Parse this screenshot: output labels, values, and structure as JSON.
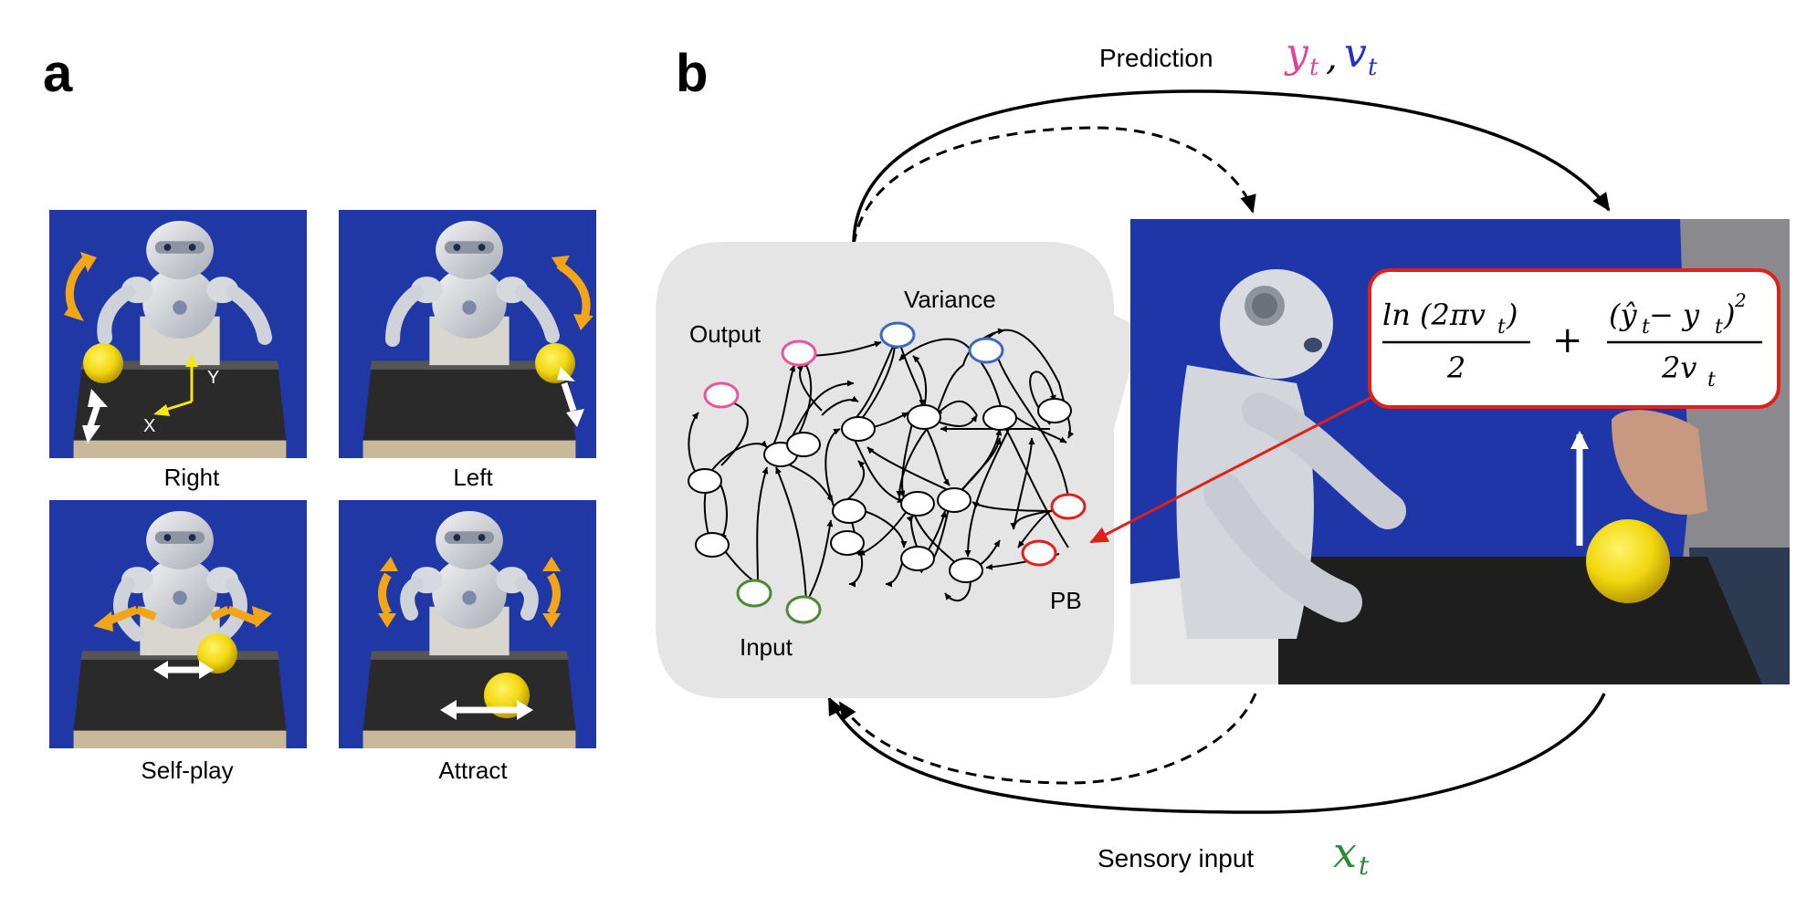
{
  "panels": {
    "a": {
      "letter": "a",
      "photos": [
        {
          "caption": "Right",
          "axis_x": "X",
          "axis_y": "Y"
        },
        {
          "caption": "Left"
        },
        {
          "caption": "Self-play"
        },
        {
          "caption": "Attract"
        }
      ]
    },
    "b": {
      "letter": "b",
      "prediction": {
        "label": "Prediction",
        "sym_y": "y",
        "sym_v": "v",
        "sub": "t",
        "sep": ","
      },
      "sensory": {
        "label": "Sensory input",
        "sym_x": "x",
        "sub": "t"
      },
      "network": {
        "output_label": "Output",
        "variance_label": "Variance",
        "input_label": "Input",
        "pb_label": "PB"
      },
      "formula": {
        "num1": "ln (2πv",
        "num1_close": ")",
        "den1": "2",
        "plus": "+",
        "num2_open": "(ŷ",
        "num2_mid": " − y",
        "num2_close": ")",
        "num2_sup": "2",
        "den2": "2v",
        "sub": "t"
      }
    }
  },
  "colors": {
    "output_node": "#e8559e",
    "variance_node": "#3b6bb8",
    "input_node": "#4b8a32",
    "pb_node": "#e0201b",
    "pred_y": "#e0449a",
    "pred_v": "#2233cc",
    "sens_x": "#2a8a3a",
    "arrow_orange": "#f2a516",
    "bg_blue": "#1f36a8"
  }
}
